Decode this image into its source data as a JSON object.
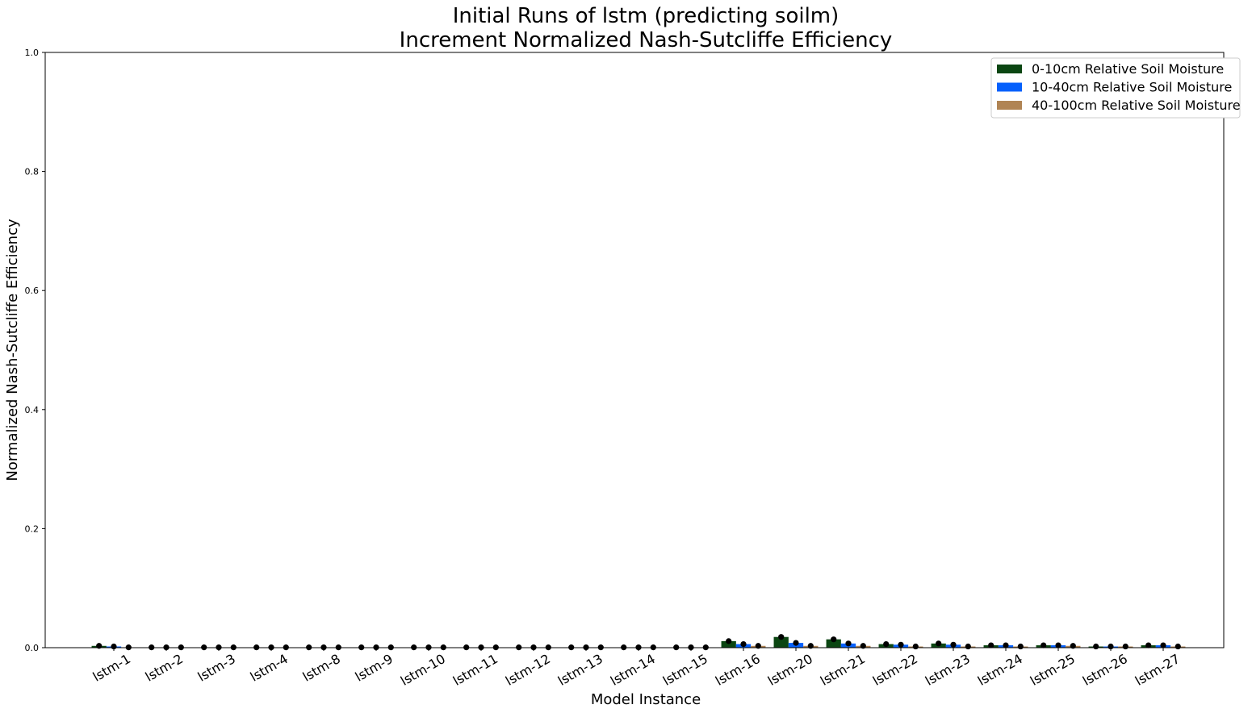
{
  "chart_data": {
    "type": "bar",
    "title_line1": "Initial Runs of lstm (predicting soilm)",
    "title_line2": "Increment Normalized Nash-Sutcliffe Efficiency",
    "xlabel": "Model Instance",
    "ylabel": "Normalized Nash-Sutcliffe Efficiency",
    "ylim": [
      0,
      1.0
    ],
    "yticks": [
      "0.0",
      "0.2",
      "0.4",
      "0.6",
      "0.8",
      "1.0"
    ],
    "ytick_values": [
      0,
      0.2,
      0.4,
      0.6,
      0.8,
      1.0
    ],
    "legend_position": "top-right",
    "categories": [
      "lstm-1",
      "lstm-2",
      "lstm-3",
      "lstm-4",
      "lstm-8",
      "lstm-9",
      "lstm-10",
      "lstm-11",
      "lstm-12",
      "lstm-13",
      "lstm-14",
      "lstm-15",
      "lstm-16",
      "lstm-20",
      "lstm-21",
      "lstm-22",
      "lstm-23",
      "lstm-24",
      "lstm-25",
      "lstm-26",
      "lstm-27"
    ],
    "series": [
      {
        "name": "0-10cm Relative Soil Moisture",
        "color": "#0b4612",
        "values": [
          0.003,
          0.0005,
          0.0005,
          0.0005,
          0.0005,
          0.0005,
          0.0005,
          0.0005,
          0.0005,
          0.0005,
          0.0005,
          0.0005,
          0.011,
          0.018,
          0.014,
          0.006,
          0.007,
          0.004,
          0.004,
          0.002,
          0.004
        ]
      },
      {
        "name": "10-40cm Relative Soil Moisture",
        "color": "#0560fc",
        "values": [
          0.002,
          0.0005,
          0.0005,
          0.0005,
          0.0005,
          0.0005,
          0.0005,
          0.0005,
          0.0005,
          0.0005,
          0.0005,
          0.0005,
          0.006,
          0.008,
          0.007,
          0.005,
          0.005,
          0.004,
          0.004,
          0.002,
          0.004
        ]
      },
      {
        "name": "40-100cm Relative Soil Moisture",
        "color": "#b08454",
        "values": [
          0.0005,
          0.0005,
          0.0005,
          0.0005,
          0.0005,
          0.0005,
          0.0005,
          0.0005,
          0.0005,
          0.0005,
          0.0005,
          0.0005,
          0.003,
          0.003,
          0.003,
          0.002,
          0.002,
          0.002,
          0.003,
          0.002,
          0.002
        ]
      }
    ]
  }
}
